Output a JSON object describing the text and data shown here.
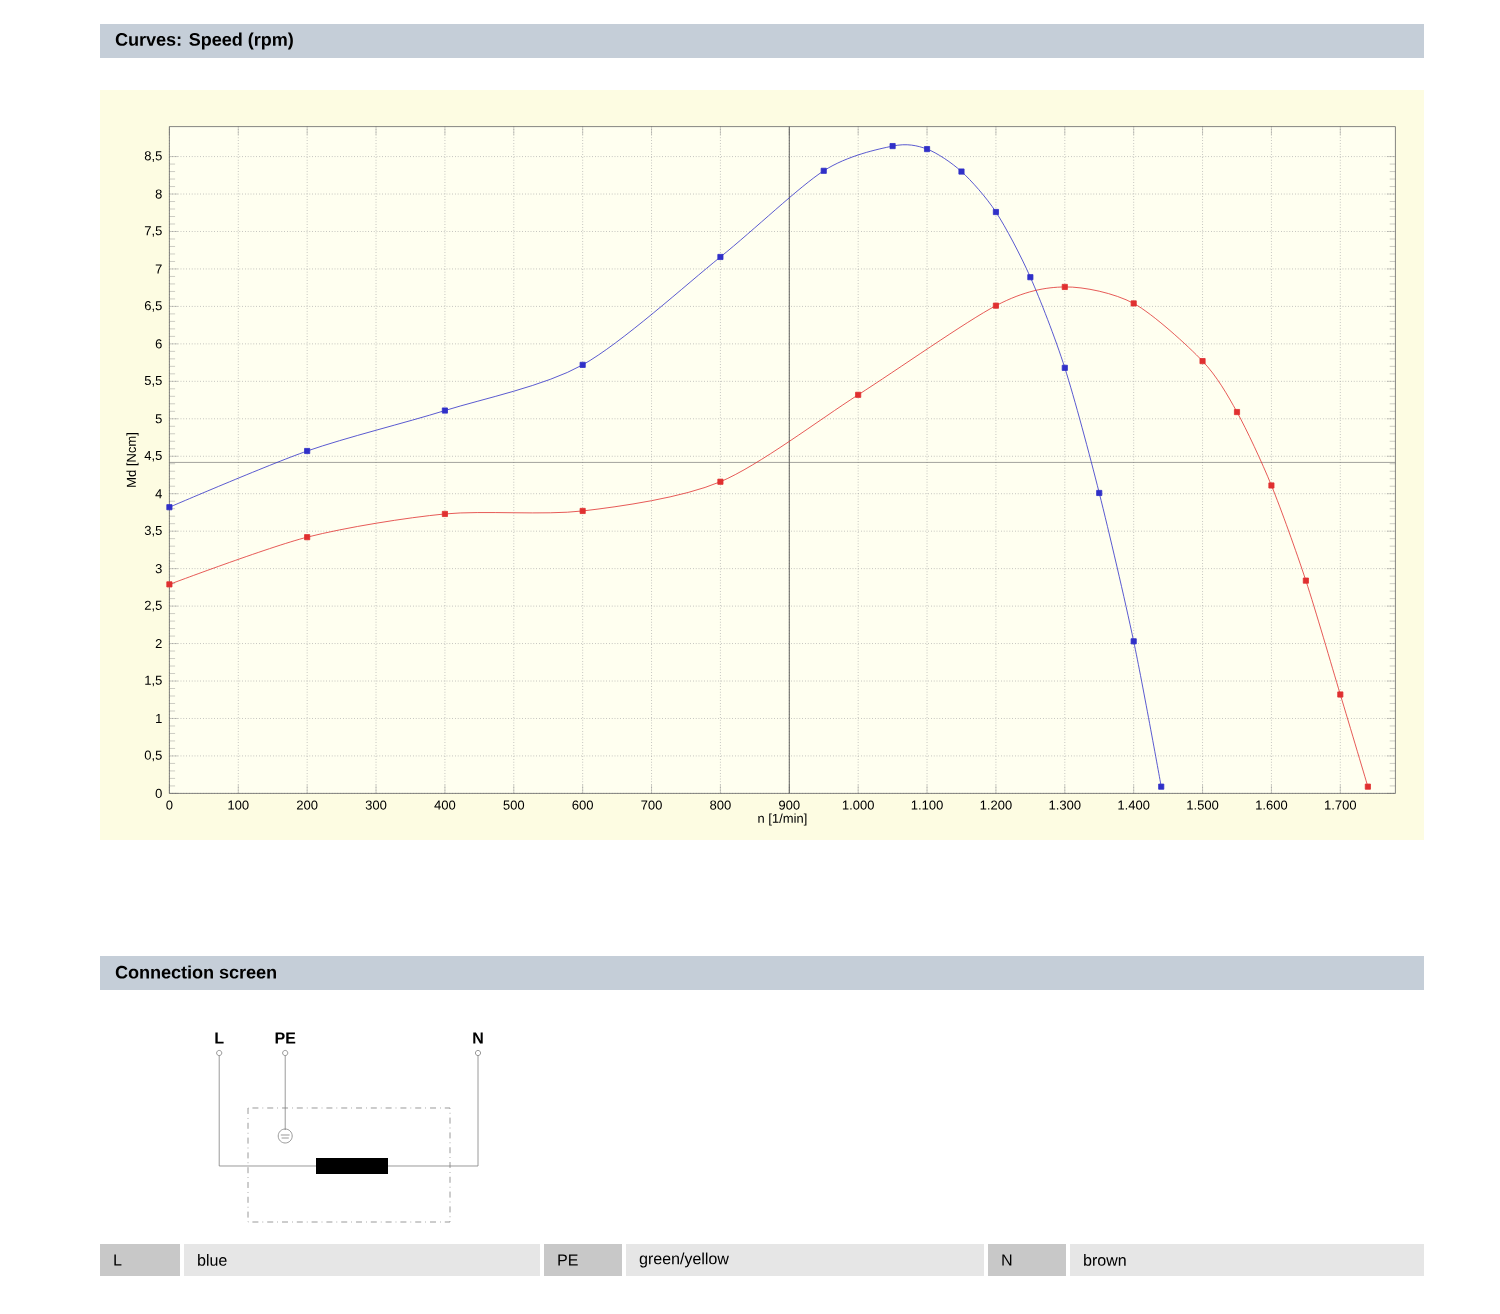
{
  "chart_data": {
    "type": "line",
    "title": "Curves: Speed (rpm)",
    "xlabel": "n [1/min]",
    "ylabel": "Md [Ncm]",
    "xlim": [
      0,
      1780
    ],
    "ylim": [
      0,
      8.9
    ],
    "xticks": [
      0,
      100,
      200,
      300,
      400,
      500,
      600,
      700,
      800,
      900,
      {
        "value": 1000,
        "label": "1.000"
      },
      {
        "value": 1100,
        "label": "1.100"
      },
      {
        "value": 1200,
        "label": "1.200"
      },
      {
        "value": 1300,
        "label": "1.300"
      },
      {
        "value": 1400,
        "label": "1.400"
      },
      {
        "value": 1500,
        "label": "1.500"
      },
      {
        "value": 1600,
        "label": "1.600"
      },
      {
        "value": 1700,
        "label": "1.700"
      }
    ],
    "yticks": [
      0,
      {
        "value": 0.5,
        "label": "0,5"
      },
      1,
      {
        "value": 1.5,
        "label": "1,5"
      },
      2,
      {
        "value": 2.5,
        "label": "2,5"
      },
      3,
      {
        "value": 3.5,
        "label": "3,5"
      },
      4,
      {
        "value": 4.5,
        "label": "4,5"
      },
      5,
      {
        "value": 5.5,
        "label": "5,5"
      },
      6,
      {
        "value": 6.5,
        "label": "6,5"
      },
      7,
      {
        "value": 7.5,
        "label": "7,5"
      },
      8,
      {
        "value": 8.5,
        "label": "8,5"
      }
    ],
    "grid": true,
    "marker": "square",
    "line_style": "solid",
    "series": [
      {
        "color": "#3030c8",
        "x": [
          0,
          200,
          400,
          600,
          800,
          950,
          1050,
          1100,
          1150,
          1200,
          1250,
          1300,
          1350,
          1400,
          1440
        ],
        "values": [
          3.82,
          4.57,
          5.11,
          5.72,
          7.16,
          8.31,
          8.64,
          8.6,
          8.3,
          7.76,
          6.89,
          5.68,
          4.01,
          2.03,
          0.09
        ]
      },
      {
        "color": "#e03030",
        "x": [
          0,
          200,
          400,
          600,
          800,
          1000,
          1200,
          1300,
          1400,
          1500,
          1550,
          1600,
          1650,
          1700,
          1740
        ],
        "values": [
          2.79,
          3.42,
          3.73,
          3.77,
          4.16,
          5.32,
          6.51,
          6.76,
          6.54,
          5.77,
          5.09,
          4.11,
          2.84,
          1.32,
          0.09
        ]
      }
    ],
    "ref_lines": [
      {
        "axis": "x",
        "value": 900,
        "color": "#404040"
      },
      {
        "axis": "y",
        "value": 4.42,
        "color": "#707070"
      }
    ],
    "annotations": [
      "Connection screen",
      "L",
      "PE",
      "N",
      "L",
      "blue",
      "PE",
      "green/yellow",
      "N",
      "brown"
    ]
  }
}
